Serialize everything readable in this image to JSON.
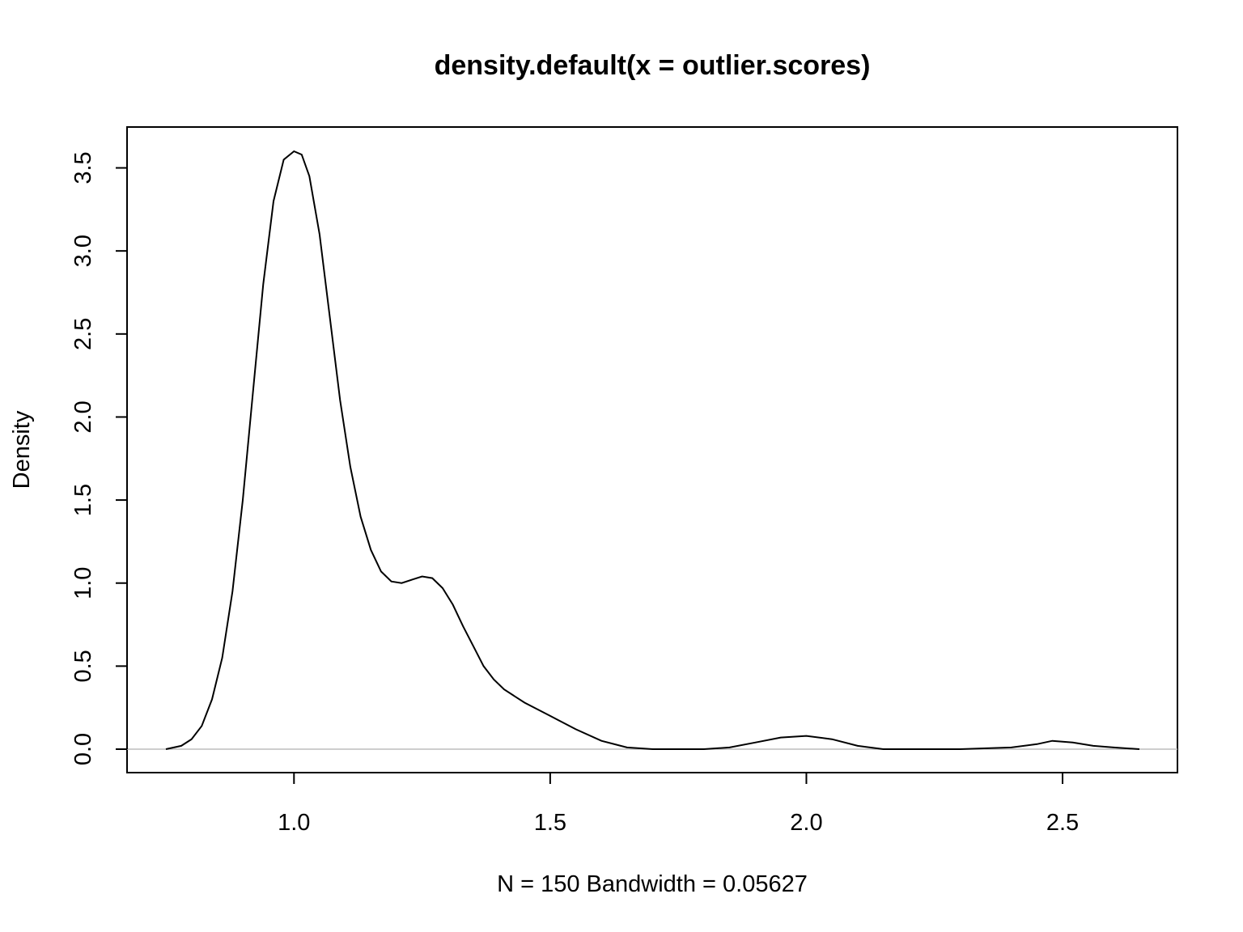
{
  "chart_data": {
    "type": "line",
    "title": "density.default(x = outlier.scores)",
    "xlabel": "N = 150   Bandwidth = 0.05627",
    "ylabel": "Density",
    "xlim": [
      0.75,
      2.65
    ],
    "ylim": [
      0.0,
      3.6
    ],
    "x_ticks": [
      "1.0",
      "1.5",
      "2.0",
      "2.5"
    ],
    "y_ticks": [
      "0.0",
      "0.5",
      "1.0",
      "1.5",
      "2.0",
      "2.5",
      "3.0",
      "3.5"
    ],
    "grid": false,
    "zero_line": true,
    "colors": {
      "line": "#000000",
      "zero_line": "#bebebe",
      "frame": "#000000"
    },
    "series": [
      {
        "x": [
          0.75,
          0.78,
          0.8,
          0.82,
          0.84,
          0.86,
          0.88,
          0.9,
          0.92,
          0.94,
          0.96,
          0.98,
          1.0,
          1.015,
          1.03,
          1.05,
          1.07,
          1.09,
          1.11,
          1.13,
          1.15,
          1.17,
          1.19,
          1.21,
          1.23,
          1.25,
          1.27,
          1.29,
          1.31,
          1.33,
          1.35,
          1.37,
          1.39,
          1.41,
          1.43,
          1.45,
          1.5,
          1.55,
          1.6,
          1.65,
          1.7,
          1.75,
          1.8,
          1.85,
          1.9,
          1.95,
          2.0,
          2.05,
          2.1,
          2.15,
          2.2,
          2.3,
          2.4,
          2.45,
          2.48,
          2.52,
          2.56,
          2.6,
          2.65
        ],
        "y": [
          0.0,
          0.02,
          0.06,
          0.14,
          0.3,
          0.55,
          0.95,
          1.5,
          2.15,
          2.8,
          3.3,
          3.55,
          3.6,
          3.58,
          3.45,
          3.1,
          2.6,
          2.1,
          1.7,
          1.4,
          1.2,
          1.07,
          1.01,
          1.0,
          1.02,
          1.04,
          1.03,
          0.97,
          0.87,
          0.74,
          0.62,
          0.5,
          0.42,
          0.36,
          0.32,
          0.28,
          0.2,
          0.12,
          0.05,
          0.01,
          0.0,
          0.0,
          0.0,
          0.01,
          0.04,
          0.07,
          0.08,
          0.06,
          0.02,
          0.0,
          0.0,
          0.0,
          0.01,
          0.03,
          0.05,
          0.04,
          0.02,
          0.01,
          0.0
        ]
      }
    ]
  }
}
